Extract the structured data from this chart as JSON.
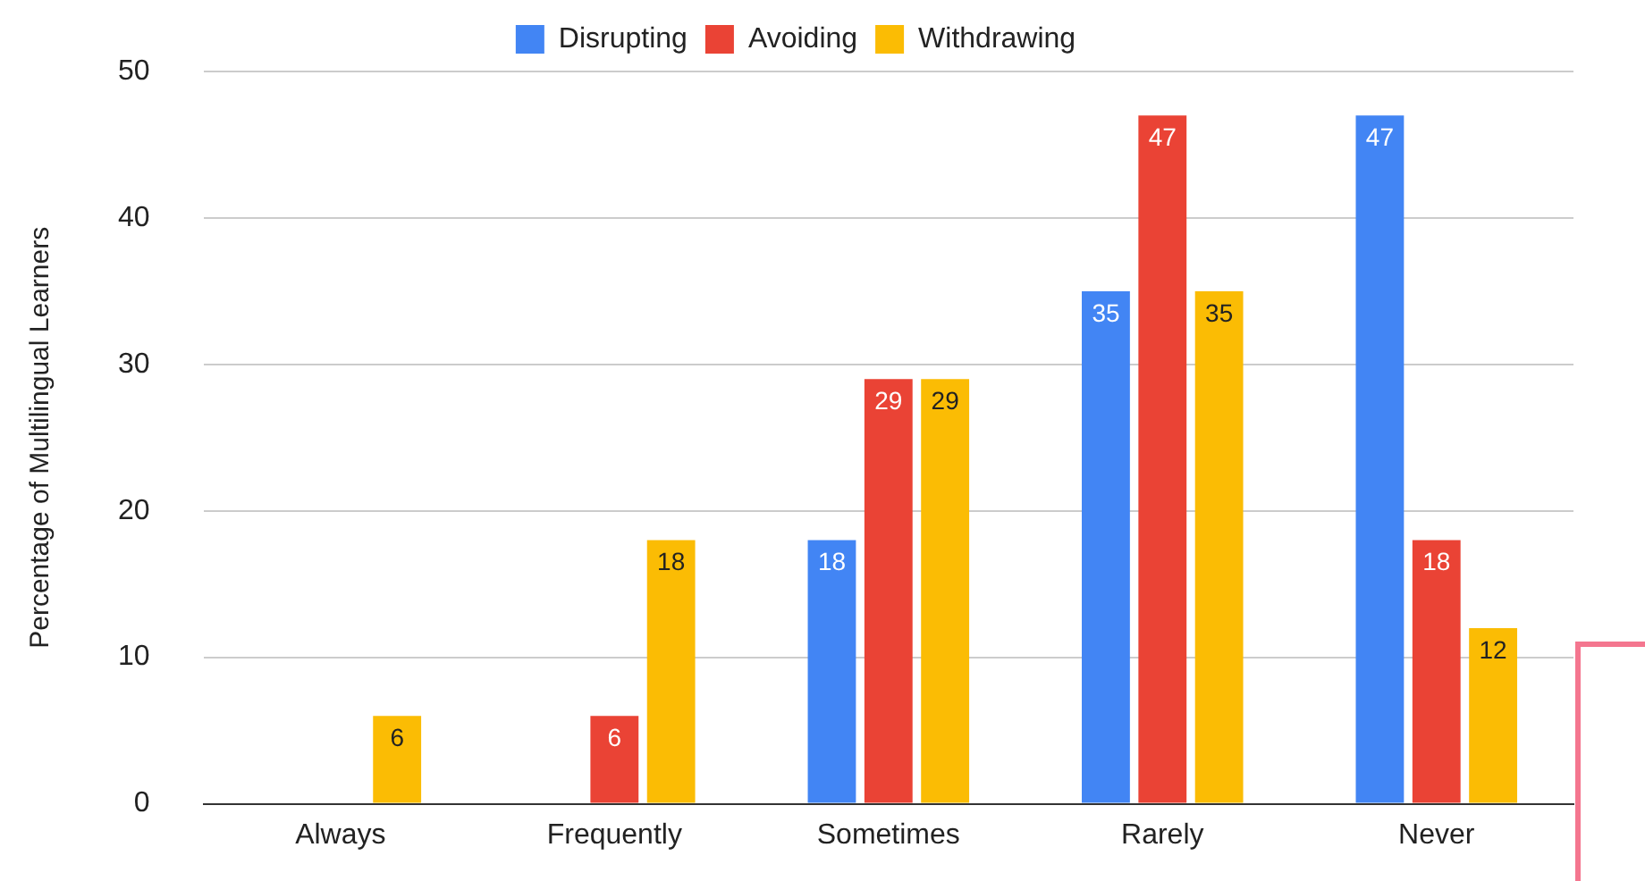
{
  "chart_data": {
    "type": "bar",
    "ylabel": "Percentage of Multilingual Learners",
    "categories": [
      "Always",
      "Frequently",
      "Sometimes",
      "Rarely",
      "Never"
    ],
    "series": [
      {
        "name": "Disrupting",
        "color": "#4285f4",
        "values": [
          0,
          0,
          18,
          35,
          47
        ],
        "value_labels": [
          null,
          null,
          "18",
          "35",
          "47"
        ]
      },
      {
        "name": "Avoiding",
        "color": "#ea4335",
        "values": [
          0,
          6,
          29,
          47,
          18
        ],
        "value_labels": [
          null,
          "6",
          "29",
          "47",
          "18"
        ]
      },
      {
        "name": "Withdrawing",
        "color": "#fbbc04",
        "values": [
          6,
          18,
          29,
          35,
          12
        ],
        "value_labels": [
          "6",
          "18",
          "29",
          "35",
          "12"
        ]
      }
    ],
    "ylim": [
      0,
      50
    ],
    "yticks": [
      0,
      10,
      20,
      30,
      40,
      50
    ],
    "grid": "y",
    "legend": "top"
  }
}
